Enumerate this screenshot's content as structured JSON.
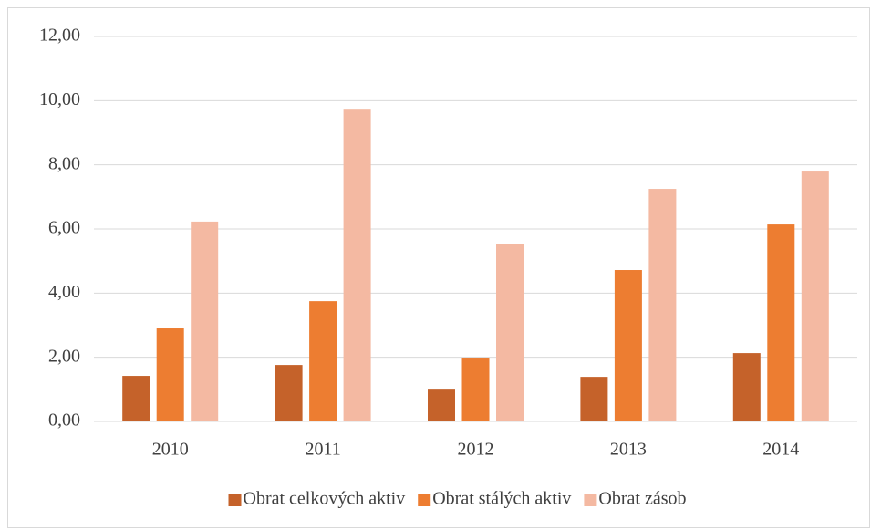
{
  "chart_data": {
    "type": "bar",
    "categories": [
      "2010",
      "2011",
      "2012",
      "2013",
      "2014"
    ],
    "series": [
      {
        "name": "Obrat celkových aktiv",
        "color": "#c5622a",
        "values": [
          1.42,
          1.76,
          1.02,
          1.39,
          2.13
        ]
      },
      {
        "name": "Obrat stálých aktiv",
        "color": "#ed7d31",
        "values": [
          2.9,
          3.75,
          1.99,
          4.72,
          6.14
        ]
      },
      {
        "name": "Obrat zásob",
        "color": "#f4b9a2",
        "values": [
          6.23,
          9.72,
          5.52,
          7.25,
          7.79
        ]
      }
    ],
    "ylim": [
      0,
      12
    ],
    "yticks": [
      {
        "value": 0,
        "label": "0,00"
      },
      {
        "value": 2,
        "label": "2,00"
      },
      {
        "value": 4,
        "label": "4,00"
      },
      {
        "value": 6,
        "label": "6,00"
      },
      {
        "value": 8,
        "label": "8,00"
      },
      {
        "value": 10,
        "label": "10,00"
      },
      {
        "value": 12,
        "label": "12,00"
      }
    ],
    "grid": true,
    "legend": "bottom"
  }
}
